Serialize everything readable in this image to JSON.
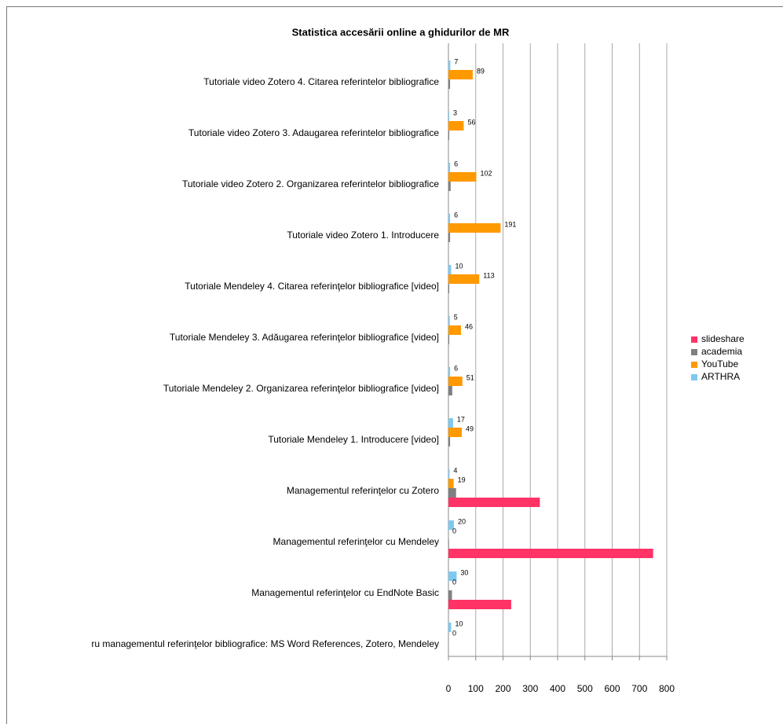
{
  "chart_data": {
    "type": "bar",
    "orientation": "horizontal",
    "title": "Statistica accesării online a ghidurilor de MR",
    "categories": [
      "Tutoriale video Zotero 4. Citarea referintelor bibliografice",
      "Tutoriale video Zotero 3. Adaugarea referintelor bibliografice",
      "Tutoriale video Zotero 2. Organizarea referintelor bibliografice",
      "Tutoriale video Zotero 1. Introducere",
      "Tutoriale Mendeley 4. Citarea referinţelor bibliografice  [video]",
      "Tutoriale Mendeley 3. Adăugarea referinţelor bibliografice  [video]",
      "Tutoriale Mendeley 2. Organizarea referinţelor bibliografice [video]",
      "Tutoriale Mendeley 1. Introducere  [video]",
      "Managementul referinţelor cu Zotero",
      "Managementul referinţelor cu Mendeley",
      "Managementul referinţelor cu EndNote Basic",
      "ru managementul referinţelor bibliografice: MS Word References, Zotero, Mendeley"
    ],
    "series": [
      {
        "name": "ARTHRA",
        "color": "#7fc9ef",
        "show_labels": true,
        "values": [
          7,
          3,
          6,
          6,
          10,
          5,
          6,
          17,
          4,
          20,
          30,
          10
        ]
      },
      {
        "name": "YouTube",
        "color": "#ff9900",
        "show_labels": true,
        "values": [
          89,
          56,
          102,
          191,
          113,
          46,
          51,
          49,
          19,
          0,
          0,
          0
        ]
      },
      {
        "name": "academia",
        "color": "#808080",
        "show_labels": false,
        "values": [
          6,
          3,
          8,
          6,
          3,
          3,
          14,
          6,
          28,
          2,
          13,
          0
        ]
      },
      {
        "name": "slideshare",
        "color": "#ff3366",
        "show_labels": false,
        "values": [
          0,
          0,
          0,
          0,
          0,
          0,
          0,
          0,
          335,
          750,
          230,
          0
        ]
      }
    ],
    "xlim": [
      0,
      800
    ],
    "xticks": [
      0,
      100,
      200,
      300,
      400,
      500,
      600,
      700,
      800
    ],
    "grid": true,
    "legend": "right"
  }
}
